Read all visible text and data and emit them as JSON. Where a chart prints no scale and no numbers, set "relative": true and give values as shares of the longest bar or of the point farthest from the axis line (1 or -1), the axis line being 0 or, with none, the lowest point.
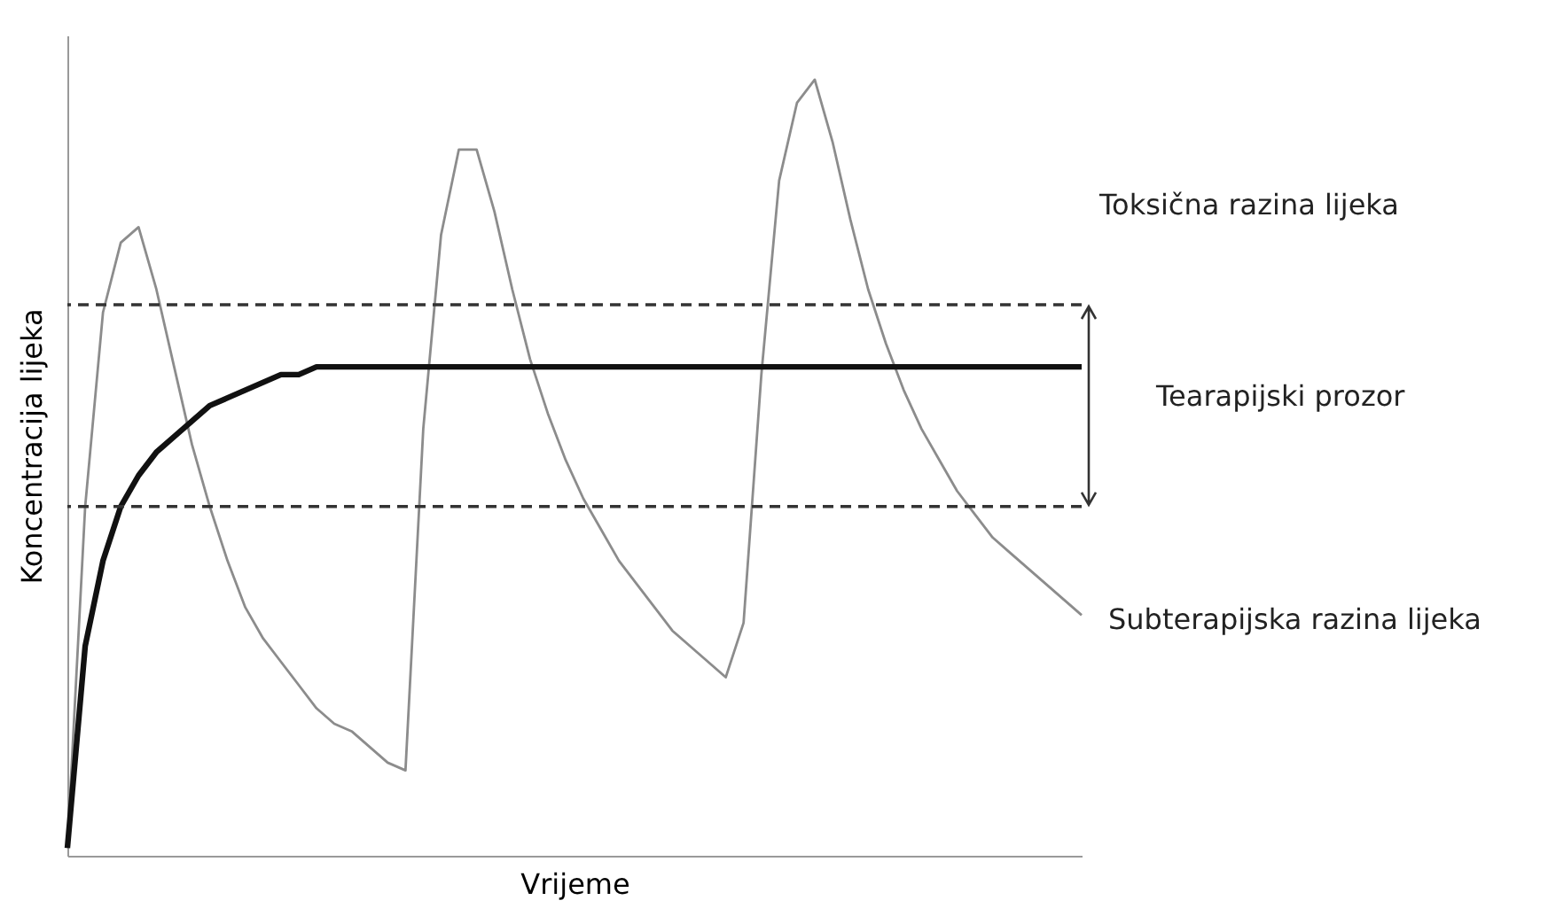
{
  "chart_data": {
    "type": "line",
    "relative": true,
    "xlabel": "Vrijeme",
    "ylabel": "Koncentracija lijeka",
    "tick_labels": false,
    "grid": false,
    "marker": "none",
    "categories": [
      null,
      null,
      null,
      null,
      null,
      null,
      null,
      null,
      null,
      null,
      null,
      null,
      null,
      null,
      null,
      null,
      null,
      null,
      null,
      null,
      null,
      null,
      null,
      null,
      null,
      null,
      null,
      null,
      null,
      null,
      null,
      null,
      null,
      null,
      null,
      null,
      null,
      null,
      null,
      null,
      null,
      null,
      null,
      null,
      null,
      null,
      null,
      null,
      null,
      null,
      null,
      null,
      null,
      null,
      null,
      null,
      null,
      null
    ],
    "series": [
      {
        "color": "#8c8c8c",
        "values": [
          0.01,
          0.45,
          0.7,
          0.79,
          0.81,
          0.73,
          0.63,
          0.53,
          0.45,
          0.38,
          0.32,
          0.28,
          0.25,
          0.22,
          0.19,
          0.17,
          0.16,
          0.14,
          0.12,
          0.11,
          0.55,
          0.8,
          0.91,
          0.91,
          0.83,
          0.73,
          0.64,
          0.57,
          0.51,
          0.46,
          0.42,
          0.38,
          0.35,
          0.32,
          0.29,
          0.27,
          0.25,
          0.23,
          0.3,
          0.62,
          0.87,
          0.97,
          1.0,
          0.92,
          0.82,
          0.73,
          0.66,
          0.6,
          0.55,
          0.51,
          0.47,
          0.44,
          0.41,
          0.39,
          0.37,
          0.35,
          0.33,
          0.31
        ]
      },
      {
        "color": "#111111",
        "values": [
          0.01,
          0.27,
          0.38,
          0.45,
          0.49,
          0.52,
          0.54,
          0.56,
          0.58,
          0.59,
          0.6,
          0.61,
          0.62,
          0.62,
          0.63,
          0.63,
          0.63,
          0.63,
          0.63,
          0.63,
          0.63,
          0.63,
          0.63,
          0.63,
          0.63,
          0.63,
          0.63,
          0.63,
          0.63,
          0.63,
          0.63,
          0.63,
          0.63,
          0.63,
          0.63,
          0.63,
          0.63,
          0.63,
          0.63,
          0.63,
          0.63,
          0.63,
          0.63,
          0.63,
          0.63,
          0.63,
          0.63,
          0.63,
          0.63,
          0.63,
          0.63,
          0.63,
          0.63,
          0.63,
          0.63,
          0.63,
          0.63,
          0.63
        ]
      }
    ],
    "ref_lines": [
      {
        "axis": "y",
        "value": 0.71,
        "color": "#333333",
        "line_style": "dashed"
      },
      {
        "axis": "y",
        "value": 0.45,
        "color": "#333333",
        "line_style": "dashed"
      }
    ],
    "annotations": [
      "Toksična razina lijeka",
      "Tearapijski prozor",
      "Subterapijska razina lijeka"
    ]
  }
}
